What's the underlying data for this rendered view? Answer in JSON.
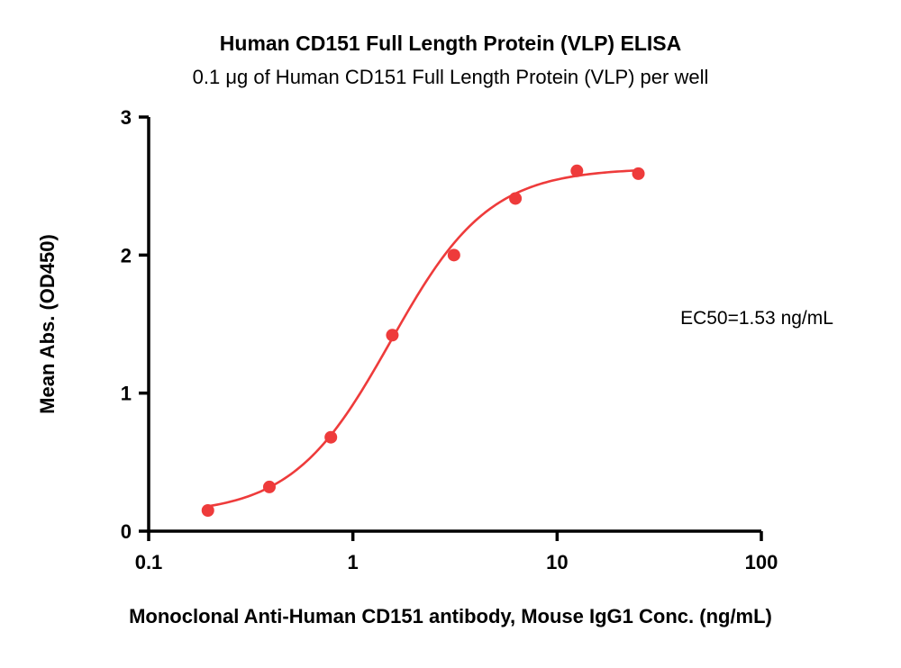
{
  "chart_data": {
    "type": "scatter",
    "title": "Human CD151 Full Length Protein (VLP) ELISA",
    "subtitle": "0.1 μg of Human CD151 Full Length Protein (VLP) per well",
    "xlabel": "Monoclonal Anti-Human CD151 antibody, Mouse IgG1 Conc. (ng/mL)",
    "ylabel": "Mean Abs. (OD450)",
    "annotation": "EC50=1.53 ng/mL",
    "x_scale": "log",
    "xlim": [
      0.1,
      100
    ],
    "ylim": [
      0,
      3
    ],
    "x_ticks": [
      0.1,
      1,
      10,
      100
    ],
    "x_tick_labels": [
      "0.1",
      "1",
      "10",
      "100"
    ],
    "y_ticks": [
      0,
      1,
      2,
      3
    ],
    "y_tick_labels": [
      "0",
      "1",
      "2",
      "3"
    ],
    "points": {
      "x": [
        0.195,
        0.39,
        0.78,
        1.56,
        3.125,
        6.25,
        12.5,
        25
      ],
      "y": [
        0.15,
        0.32,
        0.68,
        1.42,
        2.0,
        2.41,
        2.61,
        2.59
      ]
    },
    "fit": {
      "model": "4PL",
      "bottom": 0.12,
      "top": 2.63,
      "ec50": 1.53,
      "hill": 1.8
    },
    "curve_x_range": [
      0.195,
      25
    ],
    "colors": {
      "series": "#EE3B3B",
      "axis": "#000000",
      "text": "#000000"
    },
    "legend": "none",
    "grid": false
  }
}
